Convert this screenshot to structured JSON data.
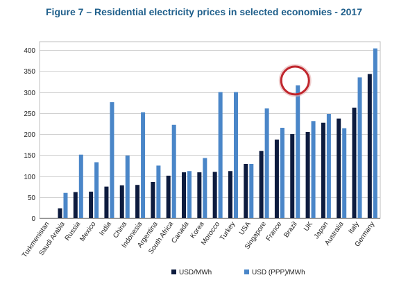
{
  "chart_data": {
    "type": "bar",
    "title": "Figure 7 – Residential electricity prices in selected economies - 2017",
    "xlabel": "",
    "ylabel": "",
    "ylim": [
      0,
      420
    ],
    "yticks": [
      0,
      50,
      100,
      150,
      200,
      250,
      300,
      350,
      400
    ],
    "grid": true,
    "legend_position": "bottom",
    "categories": [
      "Turkmenistan",
      "Saudi Arabia",
      "Russia",
      "Mexico",
      "India",
      "China",
      "Indonesia",
      "Argentina",
      "South Africa",
      "Canada",
      "Korea",
      "Morocco",
      "Turkey",
      "USA",
      "Singapore",
      "France",
      "Brazil",
      "UK",
      "Japan",
      "Australia",
      "Italy",
      "Germany"
    ],
    "series": [
      {
        "name": "USD/MWh",
        "color": "#0d1b3e",
        "values": [
          0,
          23,
          62,
          63,
          75,
          78,
          79,
          86,
          101,
          109,
          109,
          110,
          112,
          129,
          160,
          187,
          200,
          205,
          227,
          237,
          263,
          343
        ]
      },
      {
        "name": "USD (PPP)/MWh",
        "color": "#4a86c8",
        "values": [
          0,
          60,
          151,
          133,
          276,
          149,
          252,
          125,
          222,
          112,
          143,
          300,
          300,
          129,
          261,
          215,
          316,
          231,
          248,
          214,
          335,
          404
        ]
      }
    ],
    "annotation": {
      "type": "circle",
      "target": "Brazil",
      "color": "#c0262d"
    }
  }
}
